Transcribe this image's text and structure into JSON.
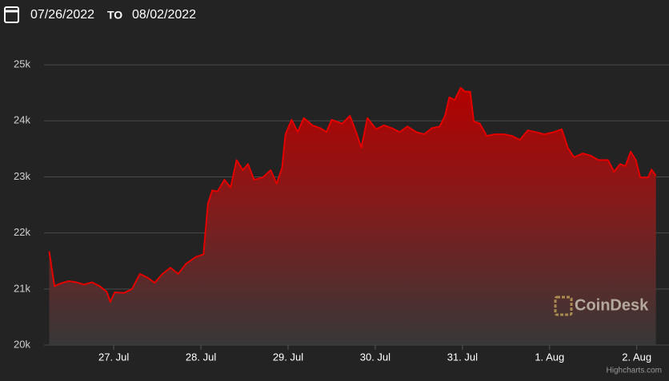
{
  "header": {
    "start_date": "07/26/2022",
    "separator": "TO",
    "end_date": "08/02/2022"
  },
  "watermark": "CoinDesk",
  "credits": "Highcharts.com",
  "chart_data": {
    "type": "area",
    "color": "#e50000",
    "grid": true,
    "x": [
      0.26,
      0.32,
      0.39,
      0.48,
      0.57,
      0.66,
      0.75,
      0.84,
      0.92,
      0.96,
      1.01,
      1.12,
      1.21,
      1.3,
      1.39,
      1.47,
      1.56,
      1.65,
      1.74,
      1.83,
      1.94,
      2.03,
      2.08,
      2.13,
      2.19,
      2.27,
      2.34,
      2.41,
      2.48,
      2.54,
      2.61,
      2.71,
      2.8,
      2.87,
      2.93,
      2.97,
      3.04,
      3.11,
      3.18,
      3.28,
      3.37,
      3.44,
      3.5,
      3.62,
      3.71,
      3.78,
      3.84,
      3.91,
      4.01,
      4.1,
      4.19,
      4.28,
      4.37,
      4.47,
      4.56,
      4.65,
      4.74,
      4.8,
      4.85,
      4.91,
      4.98,
      5.03,
      5.09,
      5.13,
      5.2,
      5.28,
      5.37,
      5.48,
      5.57,
      5.66,
      5.75,
      5.84,
      5.94,
      6.05,
      6.14,
      6.21,
      6.28,
      6.38,
      6.47,
      6.56,
      6.67,
      6.74,
      6.81,
      6.87,
      6.93,
      6.99,
      7.04,
      7.13,
      7.17,
      7.22
    ],
    "values": [
      21670,
      21050,
      21100,
      21140,
      21120,
      21080,
      21120,
      21050,
      20950,
      20770,
      20940,
      20930,
      21000,
      21270,
      21200,
      21110,
      21270,
      21380,
      21270,
      21450,
      21570,
      21620,
      22520,
      22760,
      22740,
      22950,
      22810,
      23300,
      23120,
      23230,
      22950,
      22990,
      23120,
      22880,
      23160,
      23760,
      24020,
      23800,
      24050,
      23920,
      23870,
      23800,
      24020,
      23950,
      24090,
      23800,
      23520,
      24050,
      23850,
      23920,
      23870,
      23800,
      23900,
      23800,
      23760,
      23870,
      23900,
      24090,
      24420,
      24370,
      24590,
      24520,
      24520,
      23990,
      23950,
      23730,
      23760,
      23760,
      23730,
      23660,
      23830,
      23800,
      23760,
      23800,
      23850,
      23520,
      23350,
      23420,
      23380,
      23300,
      23300,
      23090,
      23230,
      23190,
      23450,
      23300,
      22990,
      22990,
      23130,
      23020
    ],
    "xlim": [
      0.2,
      7.37
    ],
    "xticks": [
      {
        "value": 1,
        "label": "27. Jul"
      },
      {
        "value": 2,
        "label": "28. Jul"
      },
      {
        "value": 3,
        "label": "29. Jul"
      },
      {
        "value": 4,
        "label": "30. Jul"
      },
      {
        "value": 5,
        "label": "31. Jul"
      },
      {
        "value": 6,
        "label": "1. Aug"
      },
      {
        "value": 7,
        "label": "2. Aug"
      }
    ],
    "ylim": [
      20000,
      25500
    ],
    "yticks": [
      {
        "value": 20000,
        "label": "20k"
      },
      {
        "value": 21000,
        "label": "21k"
      },
      {
        "value": 22000,
        "label": "22k"
      },
      {
        "value": 23000,
        "label": "23k"
      },
      {
        "value": 24000,
        "label": "24k"
      },
      {
        "value": 25000,
        "label": "25k"
      }
    ]
  }
}
